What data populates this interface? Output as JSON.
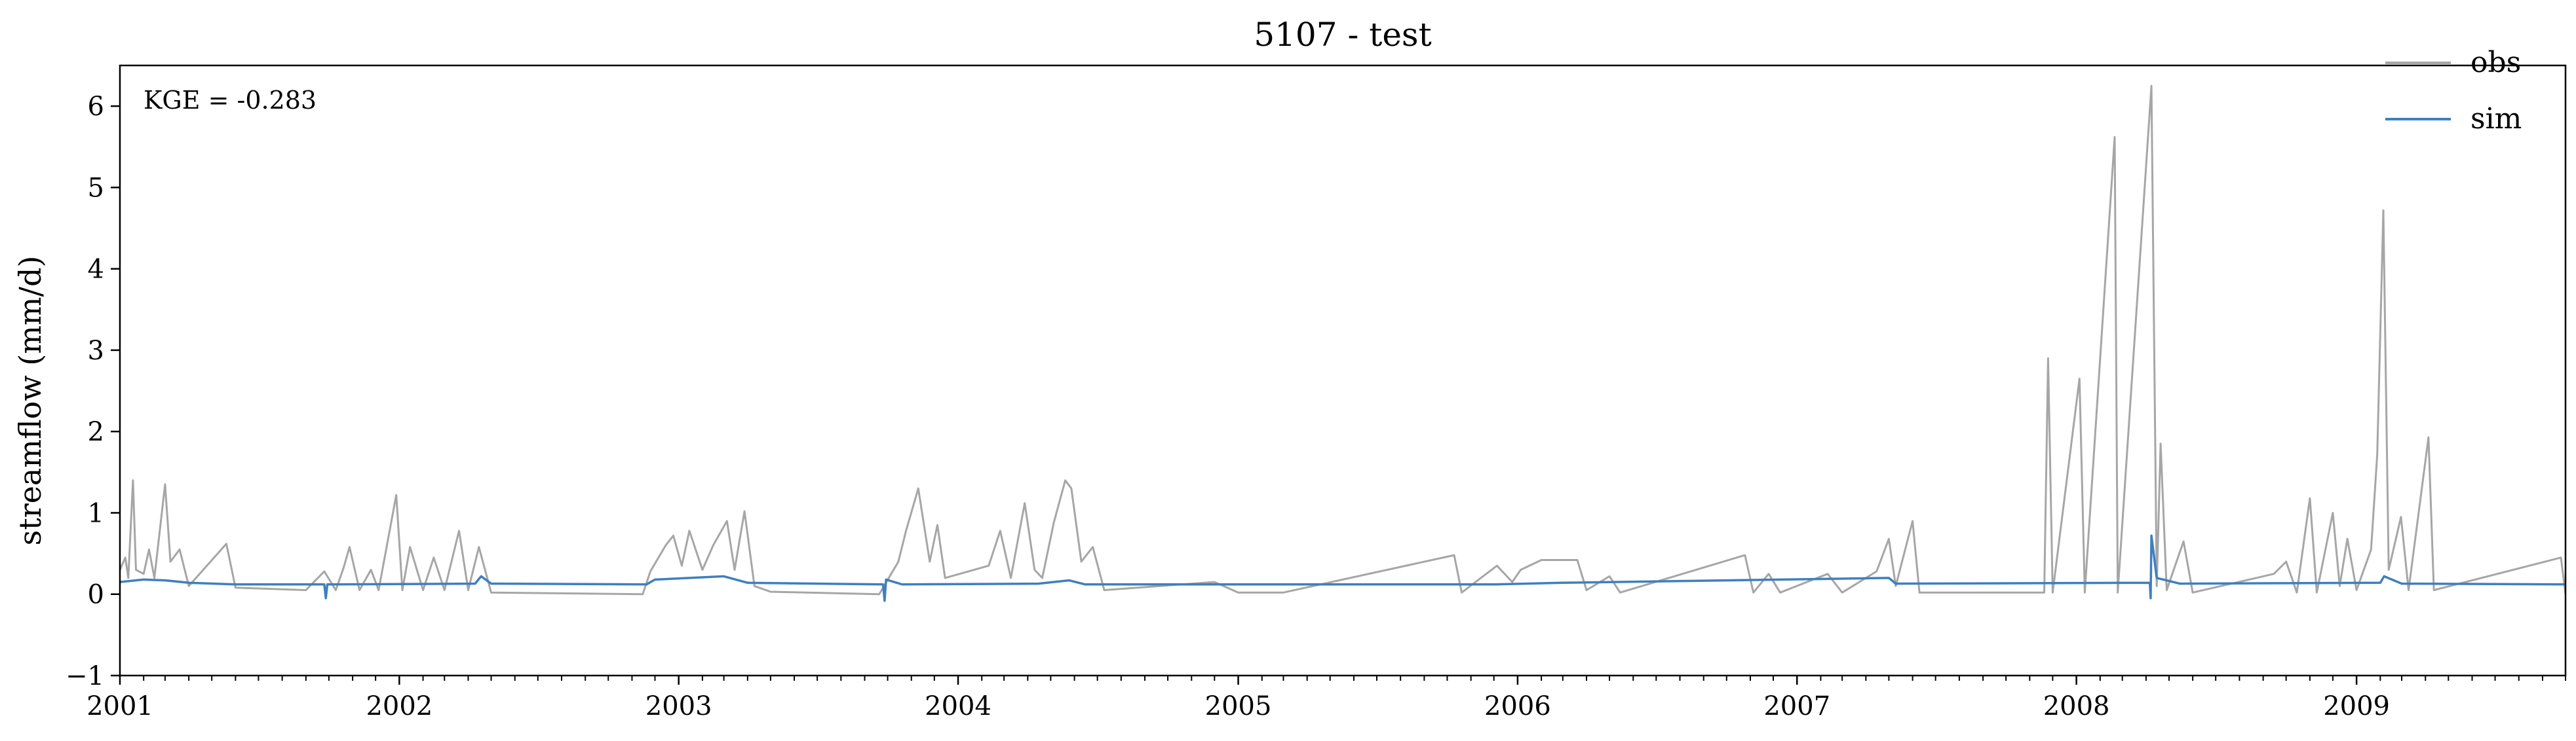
{
  "chart_data": {
    "type": "line",
    "title": "5107 - test",
    "xlabel": "",
    "ylabel": "streamflow (mm/d)",
    "annotation": "KGE = -0.283",
    "xlim": [
      "2001-01-01",
      "2009-10-01"
    ],
    "ylim": [
      -1,
      6.5
    ],
    "yticks": [
      -1,
      0,
      1,
      2,
      3,
      4,
      5,
      6
    ],
    "ytick_labels": [
      "−1",
      "0",
      "1",
      "2",
      "3",
      "4",
      "5",
      "6"
    ],
    "xticks": [
      "2001-01-01",
      "2002-01-01",
      "2003-01-01",
      "2004-01-01",
      "2005-01-01",
      "2006-01-01",
      "2007-01-01",
      "2008-01-01",
      "2009-01-01"
    ],
    "xtick_labels": [
      "2001",
      "2002",
      "2003",
      "2004",
      "2005",
      "2006",
      "2007",
      "2008",
      "2009"
    ],
    "grid": false,
    "legend": "top-right",
    "series": [
      {
        "name": "obs",
        "color": "#a6a6a6",
        "points": [
          [
            "2001-01-01",
            0.3
          ],
          [
            "2001-01-08",
            0.45
          ],
          [
            "2001-01-12",
            0.2
          ],
          [
            "2001-01-18",
            1.4
          ],
          [
            "2001-01-22",
            0.3
          ],
          [
            "2001-02-01",
            0.25
          ],
          [
            "2001-02-08",
            0.55
          ],
          [
            "2001-02-15",
            0.2
          ],
          [
            "2001-03-01",
            1.35
          ],
          [
            "2001-03-08",
            0.4
          ],
          [
            "2001-03-20",
            0.55
          ],
          [
            "2001-04-01",
            0.1
          ],
          [
            "2001-05-20",
            0.62
          ],
          [
            "2001-06-01",
            0.08
          ],
          [
            "2001-09-01",
            0.05
          ],
          [
            "2001-09-25",
            0.28
          ],
          [
            "2001-10-10",
            0.05
          ],
          [
            "2001-10-20",
            0.32
          ],
          [
            "2001-10-28",
            0.58
          ],
          [
            "2001-11-10",
            0.05
          ],
          [
            "2001-11-25",
            0.3
          ],
          [
            "2001-12-05",
            0.05
          ],
          [
            "2001-12-28",
            1.22
          ],
          [
            "2002-01-05",
            0.05
          ],
          [
            "2002-01-15",
            0.58
          ],
          [
            "2002-02-01",
            0.05
          ],
          [
            "2002-02-15",
            0.45
          ],
          [
            "2002-03-01",
            0.05
          ],
          [
            "2002-03-20",
            0.78
          ],
          [
            "2002-04-01",
            0.05
          ],
          [
            "2002-04-15",
            0.58
          ],
          [
            "2002-05-01",
            0.02
          ],
          [
            "2002-11-15",
            0.0
          ],
          [
            "2002-11-25",
            0.28
          ],
          [
            "2002-12-15",
            0.6
          ],
          [
            "2002-12-25",
            0.72
          ],
          [
            "2003-01-05",
            0.35
          ],
          [
            "2003-01-15",
            0.78
          ],
          [
            "2003-02-01",
            0.3
          ],
          [
            "2003-02-15",
            0.6
          ],
          [
            "2003-03-05",
            0.9
          ],
          [
            "2003-03-15",
            0.3
          ],
          [
            "2003-03-28",
            1.02
          ],
          [
            "2003-04-10",
            0.1
          ],
          [
            "2003-05-01",
            0.03
          ],
          [
            "2003-09-20",
            0.0
          ],
          [
            "2003-10-15",
            0.4
          ],
          [
            "2003-10-25",
            0.78
          ],
          [
            "2003-11-10",
            1.3
          ],
          [
            "2003-11-25",
            0.4
          ],
          [
            "2003-12-05",
            0.85
          ],
          [
            "2003-12-15",
            0.2
          ],
          [
            "2004-02-10",
            0.35
          ],
          [
            "2004-02-25",
            0.78
          ],
          [
            "2004-03-10",
            0.2
          ],
          [
            "2004-03-28",
            1.12
          ],
          [
            "2004-04-10",
            0.3
          ],
          [
            "2004-04-20",
            0.2
          ],
          [
            "2004-05-05",
            0.88
          ],
          [
            "2004-05-20",
            1.4
          ],
          [
            "2004-05-28",
            1.3
          ],
          [
            "2004-06-10",
            0.4
          ],
          [
            "2004-06-25",
            0.58
          ],
          [
            "2004-07-10",
            0.05
          ],
          [
            "2004-12-01",
            0.15
          ],
          [
            "2005-01-01",
            0.02
          ],
          [
            "2005-03-01",
            0.02
          ],
          [
            "2005-10-10",
            0.48
          ],
          [
            "2005-10-20",
            0.02
          ],
          [
            "2005-12-05",
            0.35
          ],
          [
            "2005-12-25",
            0.15
          ],
          [
            "2006-01-05",
            0.3
          ],
          [
            "2006-02-01",
            0.42
          ],
          [
            "2006-02-20",
            0.42
          ],
          [
            "2006-03-20",
            0.42
          ],
          [
            "2006-04-01",
            0.05
          ],
          [
            "2006-05-01",
            0.22
          ],
          [
            "2006-05-15",
            0.02
          ],
          [
            "2006-10-25",
            0.48
          ],
          [
            "2006-11-05",
            0.02
          ],
          [
            "2006-11-25",
            0.25
          ],
          [
            "2006-12-10",
            0.02
          ],
          [
            "2007-02-10",
            0.25
          ],
          [
            "2007-03-01",
            0.02
          ],
          [
            "2007-04-15",
            0.28
          ],
          [
            "2007-05-01",
            0.68
          ],
          [
            "2007-05-10",
            0.1
          ],
          [
            "2007-06-01",
            0.9
          ],
          [
            "2007-06-10",
            0.02
          ],
          [
            "2007-11-20",
            0.02
          ],
          [
            "2007-11-25",
            2.9
          ],
          [
            "2007-12-01",
            0.02
          ],
          [
            "2008-01-05",
            2.65
          ],
          [
            "2008-01-12",
            0.02
          ],
          [
            "2008-02-20",
            5.62
          ],
          [
            "2008-02-24",
            0.02
          ],
          [
            "2008-04-08",
            6.25
          ],
          [
            "2008-04-15",
            0.1
          ],
          [
            "2008-04-20",
            1.85
          ],
          [
            "2008-04-28",
            0.05
          ],
          [
            "2008-05-20",
            0.65
          ],
          [
            "2008-06-01",
            0.02
          ],
          [
            "2008-09-15",
            0.25
          ],
          [
            "2008-10-01",
            0.4
          ],
          [
            "2008-10-15",
            0.02
          ],
          [
            "2008-11-01",
            1.18
          ],
          [
            "2008-11-10",
            0.02
          ],
          [
            "2008-12-01",
            1.0
          ],
          [
            "2008-12-10",
            0.1
          ],
          [
            "2008-12-20",
            0.68
          ],
          [
            "2009-01-01",
            0.05
          ],
          [
            "2009-01-20",
            0.55
          ],
          [
            "2009-01-28",
            1.72
          ],
          [
            "2009-02-05",
            4.72
          ],
          [
            "2009-02-12",
            0.3
          ],
          [
            "2009-02-28",
            0.95
          ],
          [
            "2009-03-10",
            0.05
          ],
          [
            "2009-04-05",
            1.93
          ],
          [
            "2009-04-12",
            0.05
          ],
          [
            "2009-09-25",
            0.45
          ],
          [
            "2009-10-01",
            0.0
          ]
        ]
      },
      {
        "name": "sim",
        "color": "#3f7fbf",
        "points": [
          [
            "2001-01-01",
            0.15
          ],
          [
            "2001-02-01",
            0.18
          ],
          [
            "2001-03-01",
            0.17
          ],
          [
            "2001-04-01",
            0.14
          ],
          [
            "2001-06-01",
            0.12
          ],
          [
            "2001-09-25",
            0.12
          ],
          [
            "2001-09-27",
            -0.05
          ],
          [
            "2001-09-29",
            0.12
          ],
          [
            "2002-04-10",
            0.13
          ],
          [
            "2002-04-18",
            0.22
          ],
          [
            "2002-05-01",
            0.13
          ],
          [
            "2002-11-20",
            0.12
          ],
          [
            "2002-12-01",
            0.18
          ],
          [
            "2003-01-15",
            0.2
          ],
          [
            "2003-03-01",
            0.22
          ],
          [
            "2003-04-01",
            0.14
          ],
          [
            "2003-09-25",
            0.12
          ],
          [
            "2003-09-27",
            -0.08
          ],
          [
            "2003-09-29",
            0.18
          ],
          [
            "2003-10-20",
            0.12
          ],
          [
            "2004-04-15",
            0.13
          ],
          [
            "2004-05-25",
            0.17
          ],
          [
            "2004-06-15",
            0.12
          ],
          [
            "2005-12-01",
            0.12
          ],
          [
            "2006-03-01",
            0.14
          ],
          [
            "2007-05-01",
            0.2
          ],
          [
            "2007-05-10",
            0.13
          ],
          [
            "2008-04-06",
            0.14
          ],
          [
            "2008-04-07",
            -0.05
          ],
          [
            "2008-04-08",
            0.72
          ],
          [
            "2008-04-15",
            0.2
          ],
          [
            "2008-05-15",
            0.13
          ],
          [
            "2009-02-01",
            0.14
          ],
          [
            "2009-02-06",
            0.22
          ],
          [
            "2009-03-01",
            0.13
          ],
          [
            "2009-10-01",
            0.12
          ]
        ]
      }
    ]
  }
}
